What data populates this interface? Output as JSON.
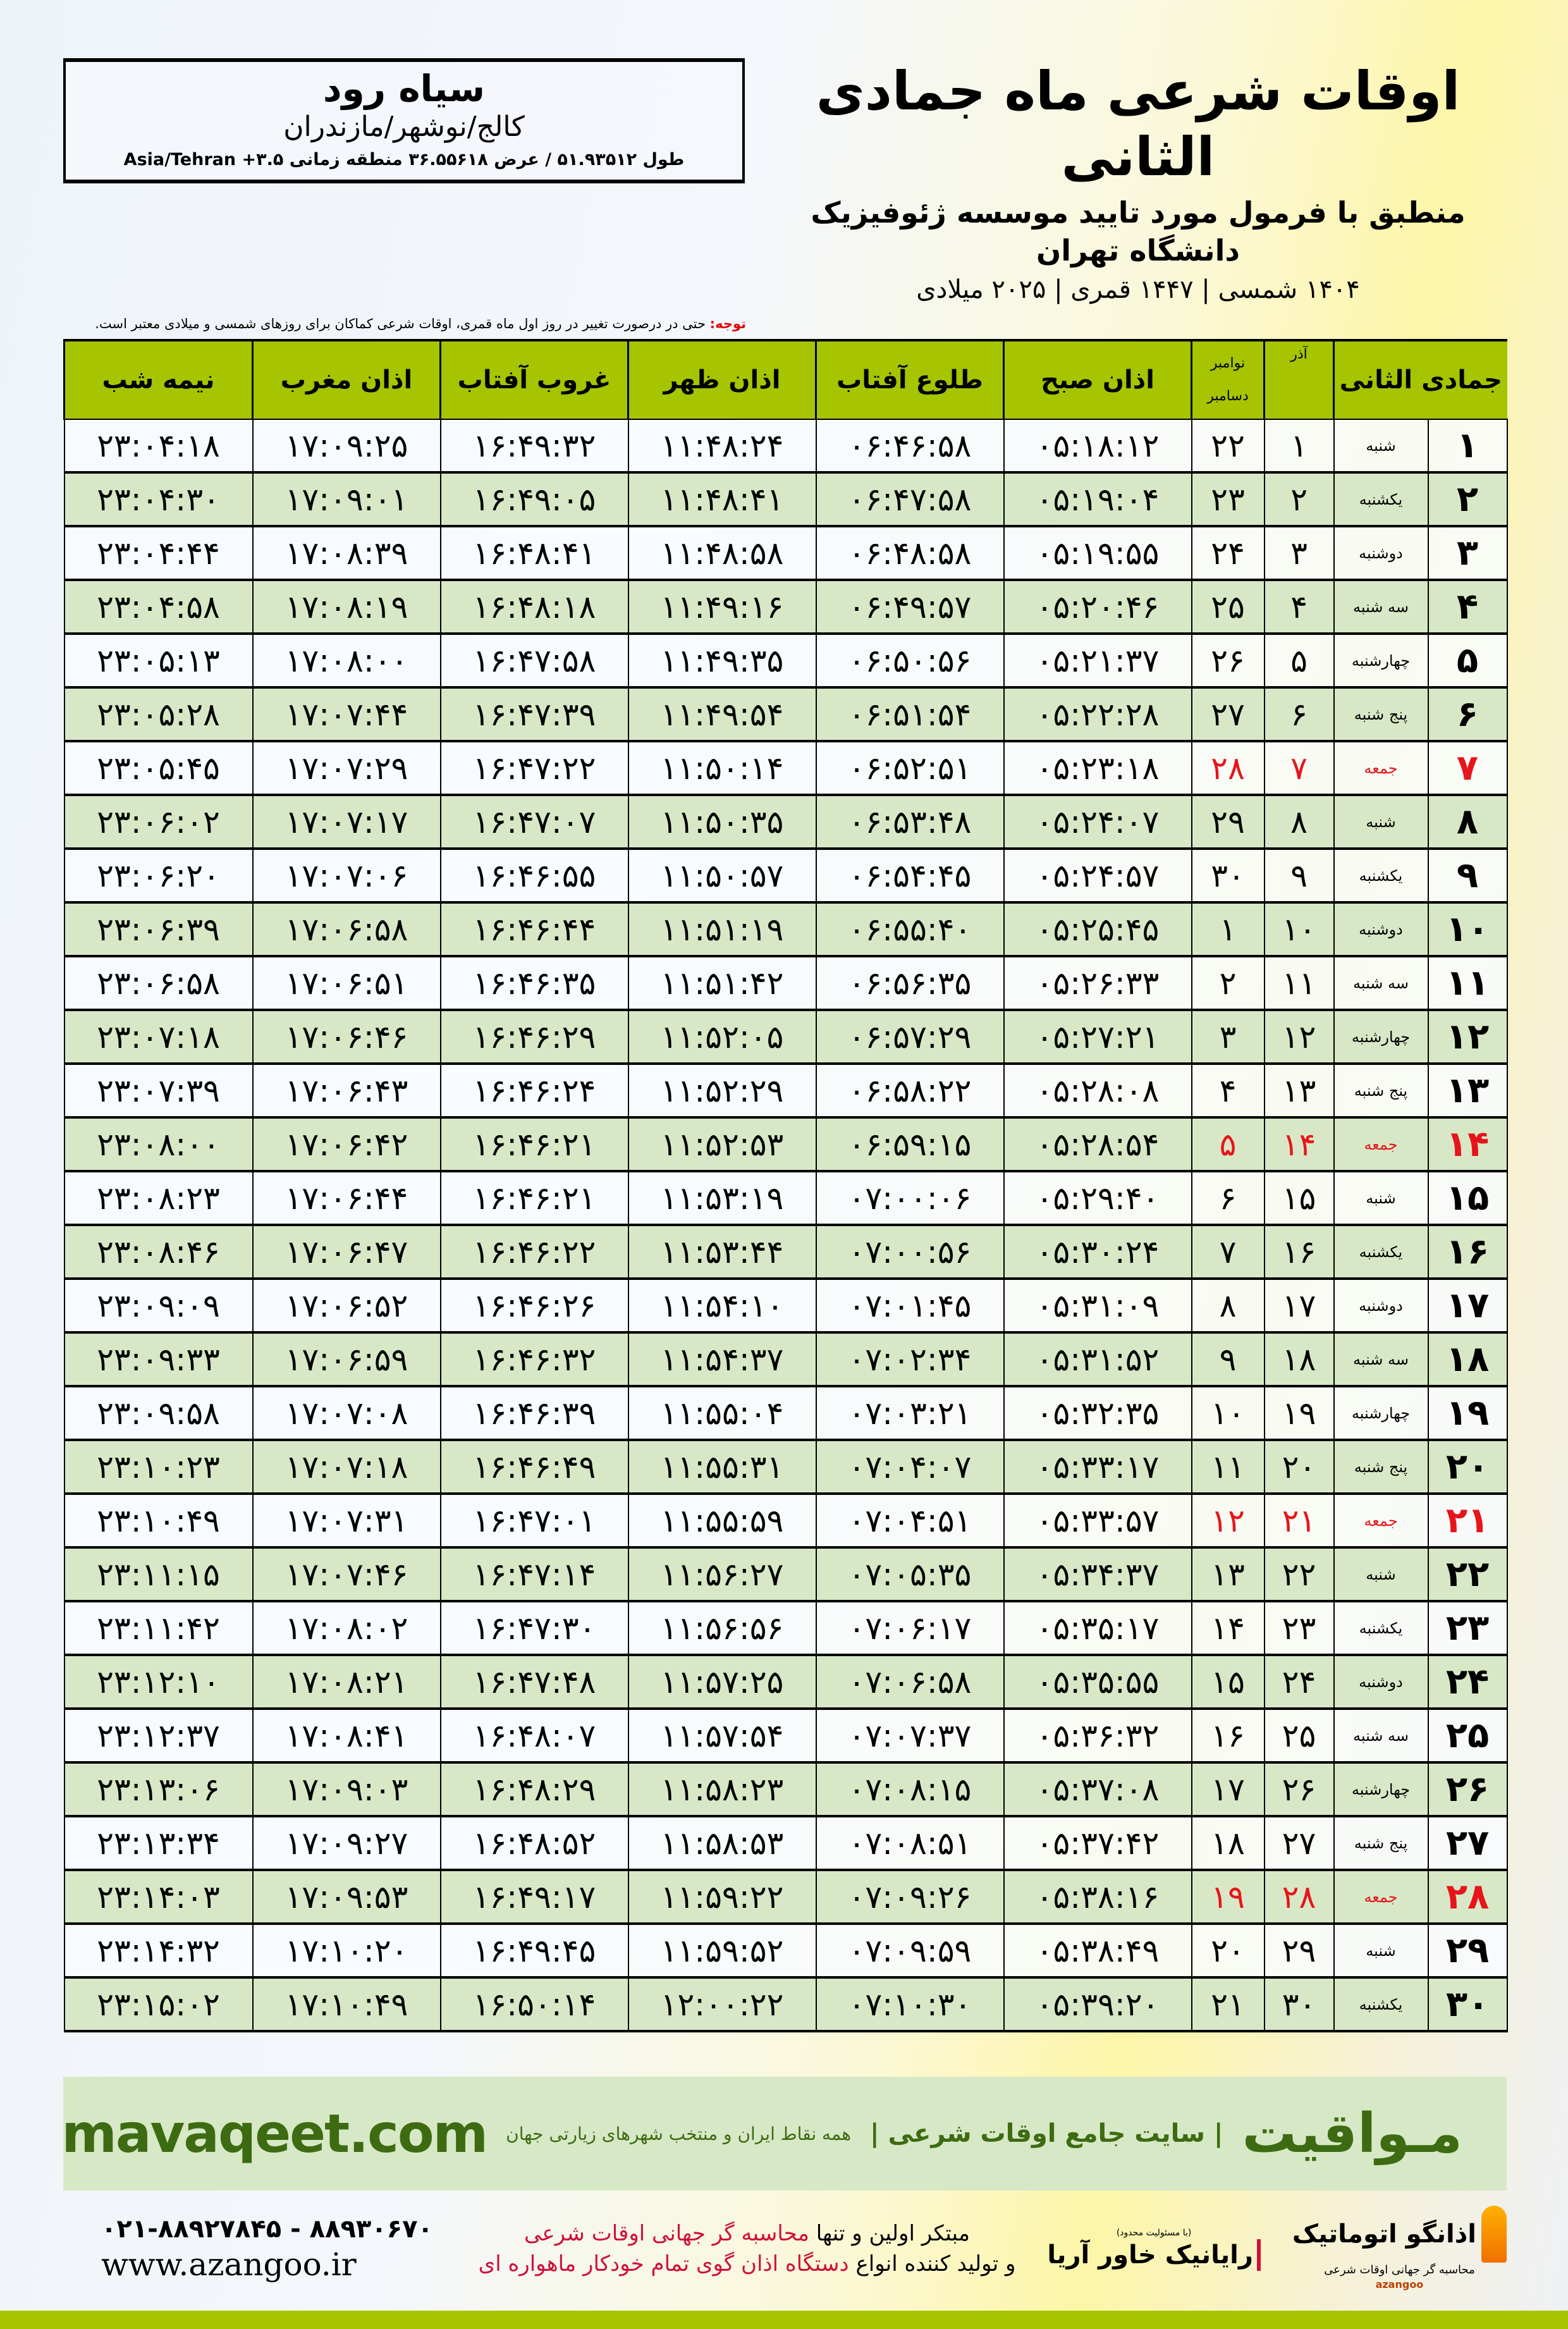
{
  "header": {
    "title": "اوقات شرعی ماه جمادی الثانی",
    "subtitle": "منطبق با فرمول مورد تایید موسسه ژئوفیزیک دانشگاه تهران",
    "dates": "۱۴۰۴ شمسی | ۱۴۴۷ قمری | ۲۰۲۵ میلادی"
  },
  "location": {
    "city": "سیاه رود",
    "region": "کالج/نوشهر/مازندران",
    "coords": "طول ۵۱.۹۳۵۱۲ / عرض ۳۶.۵۵۶۱۸ منطقه زمانی ۳.۵+ Asia/Tehran"
  },
  "note": {
    "label": "توجه:",
    "text": " حتی در درصورت تغییر در روز اول ماه قمری، اوقات شرعی کماکان برای روزهای شمسی و میلادی معتبر است."
  },
  "table": {
    "headers": {
      "hijri": "جمادی الثانی",
      "azar": "آذر",
      "gregorian_top": "نوامبر",
      "gregorian_bottom": "دسامبر",
      "fajr": "اذان صبح",
      "sunrise": "طلوع آفتاب",
      "dhuhr": "اذان ظهر",
      "sunset": "غروب آفتاب",
      "maghrib": "اذان مغرب",
      "midnight": "نیمه شب"
    },
    "friday_color": "#e8141b",
    "rows": [
      [
        "۱",
        "شنبه",
        "۱",
        "۲۲",
        "۰۵:۱۸:۱۲",
        "۰۶:۴۶:۵۸",
        "۱۱:۴۸:۲۴",
        "۱۶:۴۹:۳۲",
        "۱۷:۰۹:۲۵",
        "۲۳:۰۴:۱۸"
      ],
      [
        "۲",
        "یکشنبه",
        "۲",
        "۲۳",
        "۰۵:۱۹:۰۴",
        "۰۶:۴۷:۵۸",
        "۱۱:۴۸:۴۱",
        "۱۶:۴۹:۰۵",
        "۱۷:۰۹:۰۱",
        "۲۳:۰۴:۳۰"
      ],
      [
        "۳",
        "دوشنبه",
        "۳",
        "۲۴",
        "۰۵:۱۹:۵۵",
        "۰۶:۴۸:۵۸",
        "۱۱:۴۸:۵۸",
        "۱۶:۴۸:۴۱",
        "۱۷:۰۸:۳۹",
        "۲۳:۰۴:۴۴"
      ],
      [
        "۴",
        "سه شنبه",
        "۴",
        "۲۵",
        "۰۵:۲۰:۴۶",
        "۰۶:۴۹:۵۷",
        "۱۱:۴۹:۱۶",
        "۱۶:۴۸:۱۸",
        "۱۷:۰۸:۱۹",
        "۲۳:۰۴:۵۸"
      ],
      [
        "۵",
        "چهارشنبه",
        "۵",
        "۲۶",
        "۰۵:۲۱:۳۷",
        "۰۶:۵۰:۵۶",
        "۱۱:۴۹:۳۵",
        "۱۶:۴۷:۵۸",
        "۱۷:۰۸:۰۰",
        "۲۳:۰۵:۱۳"
      ],
      [
        "۶",
        "پنج شنبه",
        "۶",
        "۲۷",
        "۰۵:۲۲:۲۸",
        "۰۶:۵۱:۵۴",
        "۱۱:۴۹:۵۴",
        "۱۶:۴۷:۳۹",
        "۱۷:۰۷:۴۴",
        "۲۳:۰۵:۲۸"
      ],
      [
        "۷",
        "جمعه",
        "۷",
        "۲۸",
        "۰۵:۲۳:۱۸",
        "۰۶:۵۲:۵۱",
        "۱۱:۵۰:۱۴",
        "۱۶:۴۷:۲۲",
        "۱۷:۰۷:۲۹",
        "۲۳:۰۵:۴۵"
      ],
      [
        "۸",
        "شنبه",
        "۸",
        "۲۹",
        "۰۵:۲۴:۰۷",
        "۰۶:۵۳:۴۸",
        "۱۱:۵۰:۳۵",
        "۱۶:۴۷:۰۷",
        "۱۷:۰۷:۱۷",
        "۲۳:۰۶:۰۲"
      ],
      [
        "۹",
        "یکشنبه",
        "۹",
        "۳۰",
        "۰۵:۲۴:۵۷",
        "۰۶:۵۴:۴۵",
        "۱۱:۵۰:۵۷",
        "۱۶:۴۶:۵۵",
        "۱۷:۰۷:۰۶",
        "۲۳:۰۶:۲۰"
      ],
      [
        "۱۰",
        "دوشنبه",
        "۱۰",
        "۱",
        "۰۵:۲۵:۴۵",
        "۰۶:۵۵:۴۰",
        "۱۱:۵۱:۱۹",
        "۱۶:۴۶:۴۴",
        "۱۷:۰۶:۵۸",
        "۲۳:۰۶:۳۹"
      ],
      [
        "۱۱",
        "سه شنبه",
        "۱۱",
        "۲",
        "۰۵:۲۶:۳۳",
        "۰۶:۵۶:۳۵",
        "۱۱:۵۱:۴۲",
        "۱۶:۴۶:۳۵",
        "۱۷:۰۶:۵۱",
        "۲۳:۰۶:۵۸"
      ],
      [
        "۱۲",
        "چهارشنبه",
        "۱۲",
        "۳",
        "۰۵:۲۷:۲۱",
        "۰۶:۵۷:۲۹",
        "۱۱:۵۲:۰۵",
        "۱۶:۴۶:۲۹",
        "۱۷:۰۶:۴۶",
        "۲۳:۰۷:۱۸"
      ],
      [
        "۱۳",
        "پنج شنبه",
        "۱۳",
        "۴",
        "۰۵:۲۸:۰۸",
        "۰۶:۵۸:۲۲",
        "۱۱:۵۲:۲۹",
        "۱۶:۴۶:۲۴",
        "۱۷:۰۶:۴۳",
        "۲۳:۰۷:۳۹"
      ],
      [
        "۱۴",
        "جمعه",
        "۱۴",
        "۵",
        "۰۵:۲۸:۵۴",
        "۰۶:۵۹:۱۵",
        "۱۱:۵۲:۵۳",
        "۱۶:۴۶:۲۱",
        "۱۷:۰۶:۴۲",
        "۲۳:۰۸:۰۰"
      ],
      [
        "۱۵",
        "شنبه",
        "۱۵",
        "۶",
        "۰۵:۲۹:۴۰",
        "۰۷:۰۰:۰۶",
        "۱۱:۵۳:۱۹",
        "۱۶:۴۶:۲۱",
        "۱۷:۰۶:۴۴",
        "۲۳:۰۸:۲۳"
      ],
      [
        "۱۶",
        "یکشنبه",
        "۱۶",
        "۷",
        "۰۵:۳۰:۲۴",
        "۰۷:۰۰:۵۶",
        "۱۱:۵۳:۴۴",
        "۱۶:۴۶:۲۲",
        "۱۷:۰۶:۴۷",
        "۲۳:۰۸:۴۶"
      ],
      [
        "۱۷",
        "دوشنبه",
        "۱۷",
        "۸",
        "۰۵:۳۱:۰۹",
        "۰۷:۰۱:۴۵",
        "۱۱:۵۴:۱۰",
        "۱۶:۴۶:۲۶",
        "۱۷:۰۶:۵۲",
        "۲۳:۰۹:۰۹"
      ],
      [
        "۱۸",
        "سه شنبه",
        "۱۸",
        "۹",
        "۰۵:۳۱:۵۲",
        "۰۷:۰۲:۳۴",
        "۱۱:۵۴:۳۷",
        "۱۶:۴۶:۳۲",
        "۱۷:۰۶:۵۹",
        "۲۳:۰۹:۳۳"
      ],
      [
        "۱۹",
        "چهارشنبه",
        "۱۹",
        "۱۰",
        "۰۵:۳۲:۳۵",
        "۰۷:۰۳:۲۱",
        "۱۱:۵۵:۰۴",
        "۱۶:۴۶:۳۹",
        "۱۷:۰۷:۰۸",
        "۲۳:۰۹:۵۸"
      ],
      [
        "۲۰",
        "پنج شنبه",
        "۲۰",
        "۱۱",
        "۰۵:۳۳:۱۷",
        "۰۷:۰۴:۰۷",
        "۱۱:۵۵:۳۱",
        "۱۶:۴۶:۴۹",
        "۱۷:۰۷:۱۸",
        "۲۳:۱۰:۲۳"
      ],
      [
        "۲۱",
        "جمعه",
        "۲۱",
        "۱۲",
        "۰۵:۳۳:۵۷",
        "۰۷:۰۴:۵۱",
        "۱۱:۵۵:۵۹",
        "۱۶:۴۷:۰۱",
        "۱۷:۰۷:۳۱",
        "۲۳:۱۰:۴۹"
      ],
      [
        "۲۲",
        "شنبه",
        "۲۲",
        "۱۳",
        "۰۵:۳۴:۳۷",
        "۰۷:۰۵:۳۵",
        "۱۱:۵۶:۲۷",
        "۱۶:۴۷:۱۴",
        "۱۷:۰۷:۴۶",
        "۲۳:۱۱:۱۵"
      ],
      [
        "۲۳",
        "یکشنبه",
        "۲۳",
        "۱۴",
        "۰۵:۳۵:۱۷",
        "۰۷:۰۶:۱۷",
        "۱۱:۵۶:۵۶",
        "۱۶:۴۷:۳۰",
        "۱۷:۰۸:۰۲",
        "۲۳:۱۱:۴۲"
      ],
      [
        "۲۴",
        "دوشنبه",
        "۲۴",
        "۱۵",
        "۰۵:۳۵:۵۵",
        "۰۷:۰۶:۵۸",
        "۱۱:۵۷:۲۵",
        "۱۶:۴۷:۴۸",
        "۱۷:۰۸:۲۱",
        "۲۳:۱۲:۱۰"
      ],
      [
        "۲۵",
        "سه شنبه",
        "۲۵",
        "۱۶",
        "۰۵:۳۶:۳۲",
        "۰۷:۰۷:۳۷",
        "۱۱:۵۷:۵۴",
        "۱۶:۴۸:۰۷",
        "۱۷:۰۸:۴۱",
        "۲۳:۱۲:۳۷"
      ],
      [
        "۲۶",
        "چهارشنبه",
        "۲۶",
        "۱۷",
        "۰۵:۳۷:۰۸",
        "۰۷:۰۸:۱۵",
        "۱۱:۵۸:۲۳",
        "۱۶:۴۸:۲۹",
        "۱۷:۰۹:۰۳",
        "۲۳:۱۳:۰۶"
      ],
      [
        "۲۷",
        "پنج شنبه",
        "۲۷",
        "۱۸",
        "۰۵:۳۷:۴۲",
        "۰۷:۰۸:۵۱",
        "۱۱:۵۸:۵۳",
        "۱۶:۴۸:۵۲",
        "۱۷:۰۹:۲۷",
        "۲۳:۱۳:۳۴"
      ],
      [
        "۲۸",
        "جمعه",
        "۲۸",
        "۱۹",
        "۰۵:۳۸:۱۶",
        "۰۷:۰۹:۲۶",
        "۱۱:۵۹:۲۲",
        "۱۶:۴۹:۱۷",
        "۱۷:۰۹:۵۳",
        "۲۳:۱۴:۰۳"
      ],
      [
        "۲۹",
        "شنبه",
        "۲۹",
        "۲۰",
        "۰۵:۳۸:۴۹",
        "۰۷:۰۹:۵۹",
        "۱۱:۵۹:۵۲",
        "۱۶:۴۹:۴۵",
        "۱۷:۱۰:۲۰",
        "۲۳:۱۴:۳۲"
      ],
      [
        "۳۰",
        "یکشنبه",
        "۳۰",
        "۲۱",
        "۰۵:۳۹:۲۰",
        "۰۷:۱۰:۳۰",
        "۱۲:۰۰:۲۲",
        "۱۶:۵۰:۱۴",
        "۱۷:۱۰:۴۹",
        "۲۳:۱۵:۰۲"
      ]
    ]
  },
  "footer": {
    "brand": "مـواقیت",
    "tagline": "| سایت جامع اوقات شرعی |",
    "tagline2": "همه نقاط ایران و منتخب شهرهای زیارتی جهان",
    "url": "mavaqeet.com",
    "line1_a": "مبتکر اولین و تنها ",
    "line1_b": "محاسبه گر جهانی اوقات شرعی",
    "line2_a": "و تولید کننده انواع ",
    "line2_b": "دستگاه اذان گوی تمام خودکار ماهواره ای",
    "phone": "۰۲۱-۸۸۹۲۷۸۴۵ - ۸۸۹۳۰۶۷۰",
    "website": "www.azangoo.ir",
    "logo_rayanik": "رایانیک خاور آریا",
    "logo_rayanik_note": "(با مسئولیت محدود)",
    "logo_azangoo": "اذانگو اتوماتیک",
    "logo_azangoo_sub": "محاسبه گر جهانی اوقات شرعی",
    "logo_azangoo_en": "azangoo",
    "brand_color": "#3d6b12",
    "accent_color": "#a6c400"
  }
}
